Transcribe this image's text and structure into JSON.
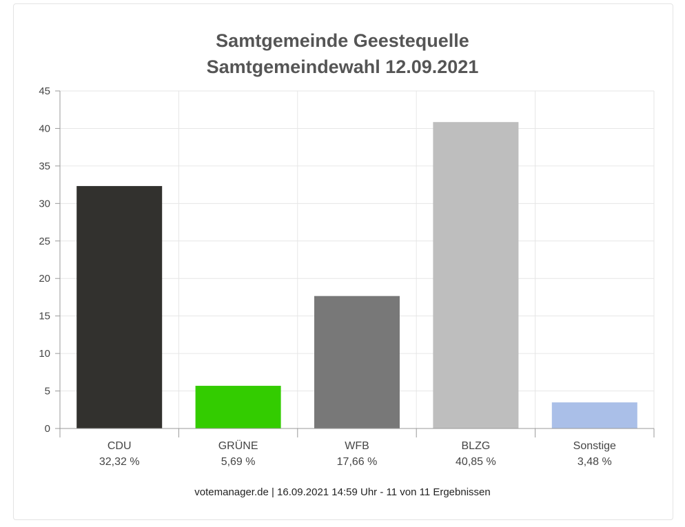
{
  "chart_data": {
    "type": "bar",
    "title": "Samtgemeinde Geestequelle",
    "subtitle": "Samtgemeindewahl 12.09.2021",
    "categories": [
      "CDU",
      "GRÜNE",
      "WFB",
      "BLZG",
      "Sonstige"
    ],
    "value_labels": [
      "32,32 %",
      "5,69 %",
      "17,66 %",
      "40,85 %",
      "3,48 %"
    ],
    "values": [
      32.32,
      5.69,
      17.66,
      40.85,
      3.48
    ],
    "colors": [
      "#32312e",
      "#33cc00",
      "#787878",
      "#bebebe",
      "#aabfe8"
    ],
    "ylim": [
      0,
      45
    ],
    "yticks": [
      0,
      5,
      10,
      15,
      20,
      25,
      30,
      35,
      40,
      45
    ],
    "xlabel": "",
    "ylabel": "",
    "grid": true,
    "legend": "none"
  },
  "footer": "votemanager.de | 16.09.2021 14:59 Uhr - 11 von 11 Ergebnissen"
}
